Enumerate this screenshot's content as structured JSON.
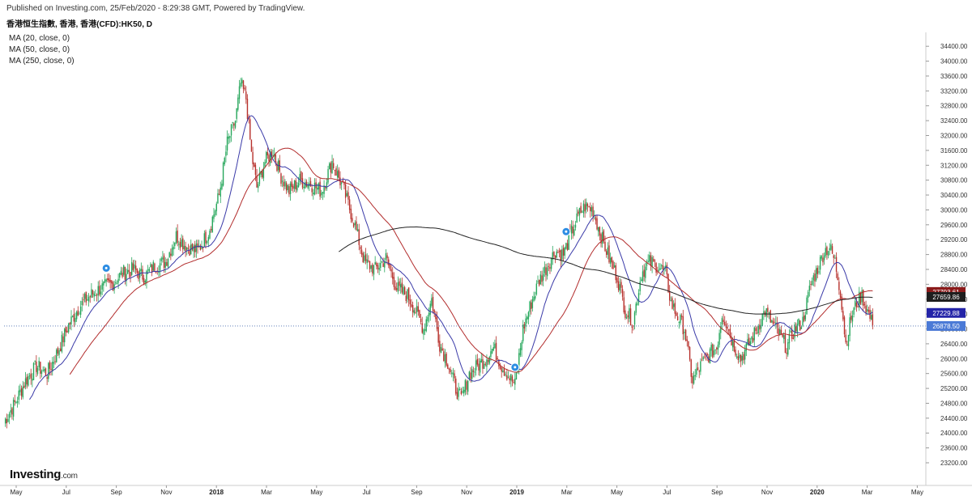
{
  "header": {
    "published": "Published on Investing.com, 25/Feb/2020 - 8:29:38 GMT, Powered by TradingView.",
    "symbol": "香港恒生指數, 香港, 香港(CFD):HK50, D"
  },
  "indicators": [
    {
      "label": "MA (20, close, 0)",
      "color": "#3a3aa8"
    },
    {
      "label": "MA (50, close, 0)",
      "color": "#b22c2c"
    },
    {
      "label": "MA (250, close, 0)",
      "color": "#222222"
    }
  ],
  "logo": {
    "main": "Investing",
    "suffix": ".com"
  },
  "colors": {
    "up": "#26a65b",
    "down": "#b7312c",
    "ma20": "#3a3aa8",
    "ma50": "#b22c2c",
    "ma250": "#222222",
    "last_line": "#4b6fb0"
  },
  "chart_data": {
    "type": "candlestick",
    "ylim": [
      23200,
      34600
    ],
    "y_ticks": [
      "23200.00",
      "23600.00",
      "24000.00",
      "24400.00",
      "24800.00",
      "25200.00",
      "25600.00",
      "26000.00",
      "26400.00",
      "26800.00",
      "27200.00",
      "27600.00",
      "28000.00",
      "28400.00",
      "28800.00",
      "29200.00",
      "29600.00",
      "30000.00",
      "30400.00",
      "30800.00",
      "31200.00",
      "31600.00",
      "32000.00",
      "32400.00",
      "32800.00",
      "33200.00",
      "33600.00",
      "34000.00",
      "34400.00"
    ],
    "x_ticks": [
      "May",
      "Jul",
      "Sep",
      "Nov",
      "2018",
      "Mar",
      "May",
      "Jul",
      "Sep",
      "Nov",
      "2019",
      "Mar",
      "May",
      "Jul",
      "Sep",
      "Nov",
      "2020",
      "Mar",
      "May"
    ],
    "x_tick_bold": [
      "2018",
      "2019",
      "2020"
    ],
    "price_labels": [
      {
        "value": 27793.61,
        "text": "27793.61",
        "bg": "#8b1a1a"
      },
      {
        "value": 27659.86,
        "text": "27659.86",
        "bg": "#1e1e1e"
      },
      {
        "value": 27229.88,
        "text": "27229.88",
        "bg": "#2424a8"
      },
      {
        "value": 26878.5,
        "text": "26878.50",
        "bg": "#4b7ad6"
      }
    ],
    "last_price": 26878.5,
    "dividend_markers": 3,
    "close_path": [
      [
        0,
        24300
      ],
      [
        8,
        24800
      ],
      [
        16,
        25400
      ],
      [
        24,
        25800
      ],
      [
        32,
        25600
      ],
      [
        40,
        26200
      ],
      [
        48,
        26900
      ],
      [
        56,
        27400
      ],
      [
        64,
        27700
      ],
      [
        72,
        27900
      ],
      [
        80,
        28000
      ],
      [
        88,
        28300
      ],
      [
        96,
        28400
      ],
      [
        104,
        28200
      ],
      [
        112,
        28500
      ],
      [
        120,
        28600
      ],
      [
        128,
        29300
      ],
      [
        136,
        29000
      ],
      [
        144,
        28900
      ],
      [
        152,
        29400
      ],
      [
        160,
        30400
      ],
      [
        166,
        31800
      ],
      [
        172,
        32400
      ],
      [
        176,
        33400
      ],
      [
        180,
        33000
      ],
      [
        184,
        31500
      ],
      [
        188,
        30600
      ],
      [
        194,
        31300
      ],
      [
        200,
        31600
      ],
      [
        206,
        30900
      ],
      [
        212,
        30500
      ],
      [
        220,
        30800
      ],
      [
        228,
        30700
      ],
      [
        236,
        30500
      ],
      [
        244,
        31300
      ],
      [
        252,
        30600
      ],
      [
        260,
        29700
      ],
      [
        268,
        28600
      ],
      [
        276,
        28400
      ],
      [
        284,
        28700
      ],
      [
        292,
        27900
      ],
      [
        300,
        27700
      ],
      [
        306,
        27300
      ],
      [
        312,
        26800
      ],
      [
        318,
        27600
      ],
      [
        324,
        26400
      ],
      [
        330,
        25900
      ],
      [
        336,
        25200
      ],
      [
        340,
        24900
      ],
      [
        346,
        25600
      ],
      [
        352,
        25800
      ],
      [
        358,
        26000
      ],
      [
        364,
        26300
      ],
      [
        370,
        25800
      ],
      [
        376,
        25500
      ],
      [
        380,
        25300
      ],
      [
        386,
        26800
      ],
      [
        392,
        27500
      ],
      [
        398,
        28100
      ],
      [
        404,
        28500
      ],
      [
        410,
        28900
      ],
      [
        416,
        28800
      ],
      [
        422,
        29400
      ],
      [
        428,
        29900
      ],
      [
        432,
        30100
      ],
      [
        438,
        30000
      ],
      [
        444,
        29300
      ],
      [
        450,
        28700
      ],
      [
        456,
        28200
      ],
      [
        462,
        27300
      ],
      [
        468,
        27000
      ],
      [
        474,
        28300
      ],
      [
        480,
        28600
      ],
      [
        486,
        28500
      ],
      [
        492,
        28300
      ],
      [
        496,
        27500
      ],
      [
        500,
        27200
      ],
      [
        506,
        26800
      ],
      [
        512,
        25400
      ],
      [
        518,
        25800
      ],
      [
        524,
        26100
      ],
      [
        530,
        26300
      ],
      [
        534,
        27200
      ],
      [
        538,
        26900
      ],
      [
        542,
        26400
      ],
      [
        548,
        26000
      ],
      [
        554,
        26400
      ],
      [
        560,
        26800
      ],
      [
        566,
        27300
      ],
      [
        572,
        26900
      ],
      [
        576,
        26700
      ],
      [
        582,
        26300
      ],
      [
        588,
        26800
      ],
      [
        594,
        27000
      ],
      [
        600,
        28000
      ],
      [
        606,
        28500
      ],
      [
        610,
        28900
      ],
      [
        614,
        29000
      ],
      [
        618,
        28600
      ],
      [
        622,
        27800
      ],
      [
        626,
        26400
      ],
      [
        630,
        27100
      ],
      [
        634,
        27500
      ],
      [
        638,
        27700
      ],
      [
        642,
        27300
      ],
      [
        646,
        26900
      ]
    ]
  }
}
